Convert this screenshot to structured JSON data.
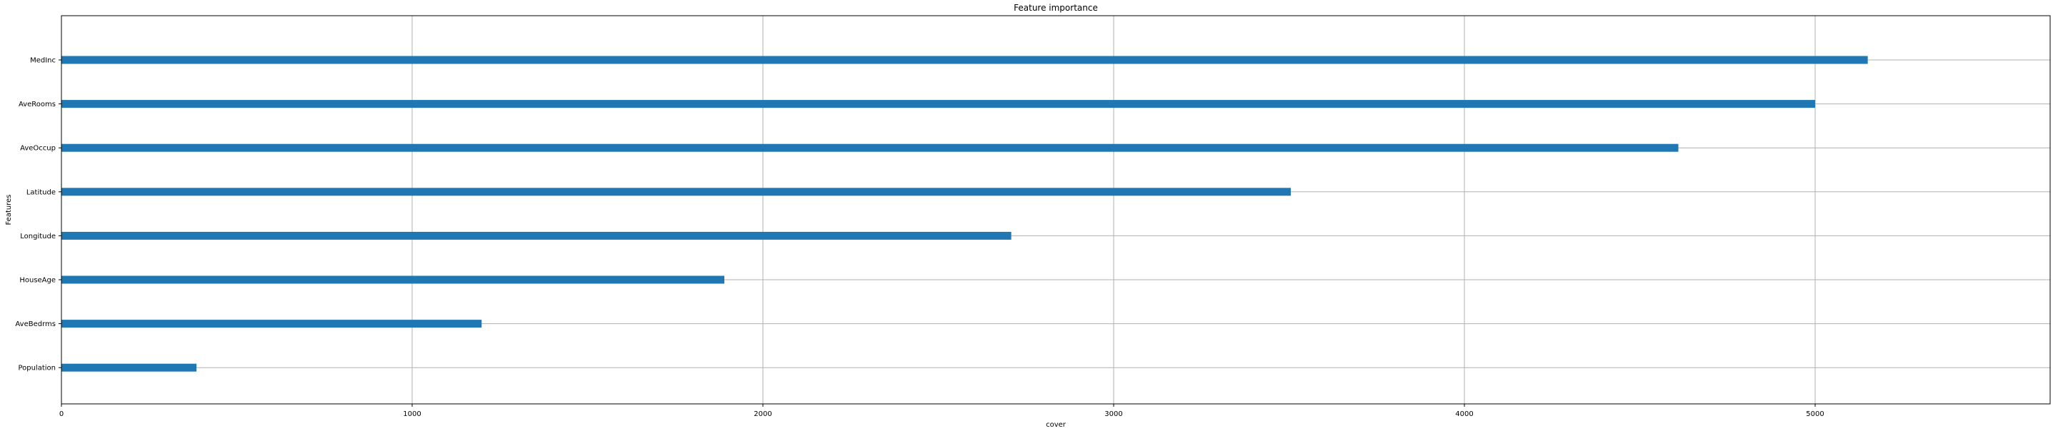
{
  "chart_data": {
    "type": "bar",
    "orientation": "horizontal",
    "title": "Feature importance",
    "xlabel": "cover",
    "ylabel": "Features",
    "categories": [
      "MedInc",
      "AveRooms",
      "AveOccup",
      "Latitude",
      "Longitude",
      "HouseAge",
      "AveBedrms",
      "Population"
    ],
    "values": [
      5150,
      5000,
      4610,
      3505,
      2708,
      1890,
      1198,
      385
    ],
    "xlim": [
      0,
      5670
    ],
    "xticks": [
      0,
      1000,
      2000,
      3000,
      4000,
      5000
    ],
    "xtick_labels": [
      "0",
      "1000",
      "2000",
      "3000",
      "4000",
      "5000"
    ],
    "grid": true,
    "legend": "none",
    "bar_color": "#1f77b4",
    "grid_color": "#b0b0b0"
  }
}
